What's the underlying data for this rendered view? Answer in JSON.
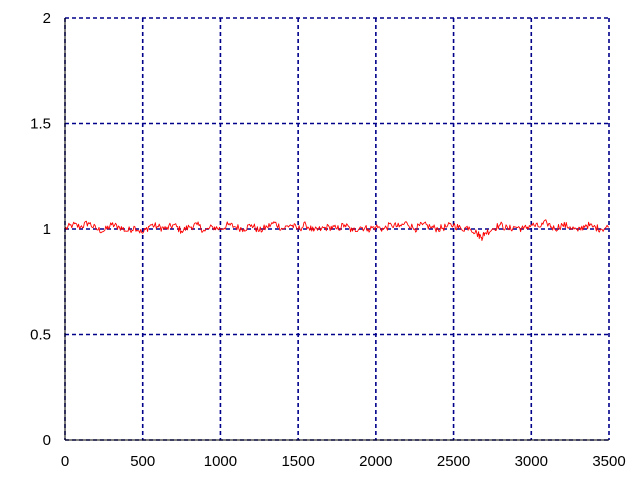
{
  "chart_data": {
    "type": "line",
    "title": "",
    "xlabel": "",
    "ylabel": "",
    "xlim": [
      0,
      3500
    ],
    "ylim": [
      0,
      2
    ],
    "x_ticks": [
      0,
      500,
      1000,
      1500,
      2000,
      2500,
      3000,
      3500
    ],
    "y_ticks": [
      0,
      0.5,
      1,
      1.5,
      2
    ],
    "x_tick_labels": [
      "0",
      "500",
      "1000",
      "1500",
      "2000",
      "2500",
      "3000",
      "3500"
    ],
    "y_tick_labels": [
      "0",
      "0.5",
      "1",
      "1.5",
      "2"
    ],
    "grid": true,
    "legend": "none",
    "series": [
      {
        "color": "#ff0000",
        "x": [
          0,
          50,
          100,
          150,
          200,
          250,
          300,
          350,
          400,
          450,
          500,
          550,
          600,
          650,
          700,
          750,
          800,
          850,
          900,
          950,
          1000,
          1050,
          1100,
          1150,
          1200,
          1250,
          1300,
          1350,
          1400,
          1450,
          1500,
          1550,
          1600,
          1650,
          1700,
          1750,
          1800,
          1850,
          1900,
          1950,
          2000,
          2050,
          2100,
          2150,
          2200,
          2250,
          2300,
          2350,
          2400,
          2450,
          2500,
          2550,
          2600,
          2650,
          2680,
          2700,
          2750,
          2800,
          2850,
          2900,
          2950,
          3000,
          3050,
          3100,
          3150,
          3200,
          3250,
          3300,
          3350,
          3400,
          3450,
          3500
        ],
        "values": [
          1.0,
          1.02,
          1.01,
          1.03,
          1.0,
          0.99,
          1.02,
          1.01,
          0.99,
          1.01,
          0.98,
          1.02,
          1.01,
          1.0,
          1.02,
          0.99,
          1.01,
          1.02,
          0.99,
          1.01,
          1.0,
          1.02,
          1.01,
          1.0,
          1.02,
          0.99,
          1.01,
          1.03,
          1.0,
          1.02,
          1.0,
          1.02,
          0.99,
          1.0,
          1.01,
          1.0,
          1.02,
          0.99,
          1.01,
          1.0,
          1.01,
          1.0,
          1.02,
          1.01,
          1.03,
          1.0,
          1.02,
          1.01,
          1.0,
          1.01,
          1.02,
          1.0,
          1.01,
          0.98,
          0.96,
          0.98,
          1.0,
          1.02,
          1.0,
          1.01,
          1.0,
          1.02,
          1.01,
          1.03,
          1.0,
          1.02,
          1.01,
          0.99,
          1.02,
          1.01,
          1.0,
          1.01
        ]
      }
    ]
  }
}
